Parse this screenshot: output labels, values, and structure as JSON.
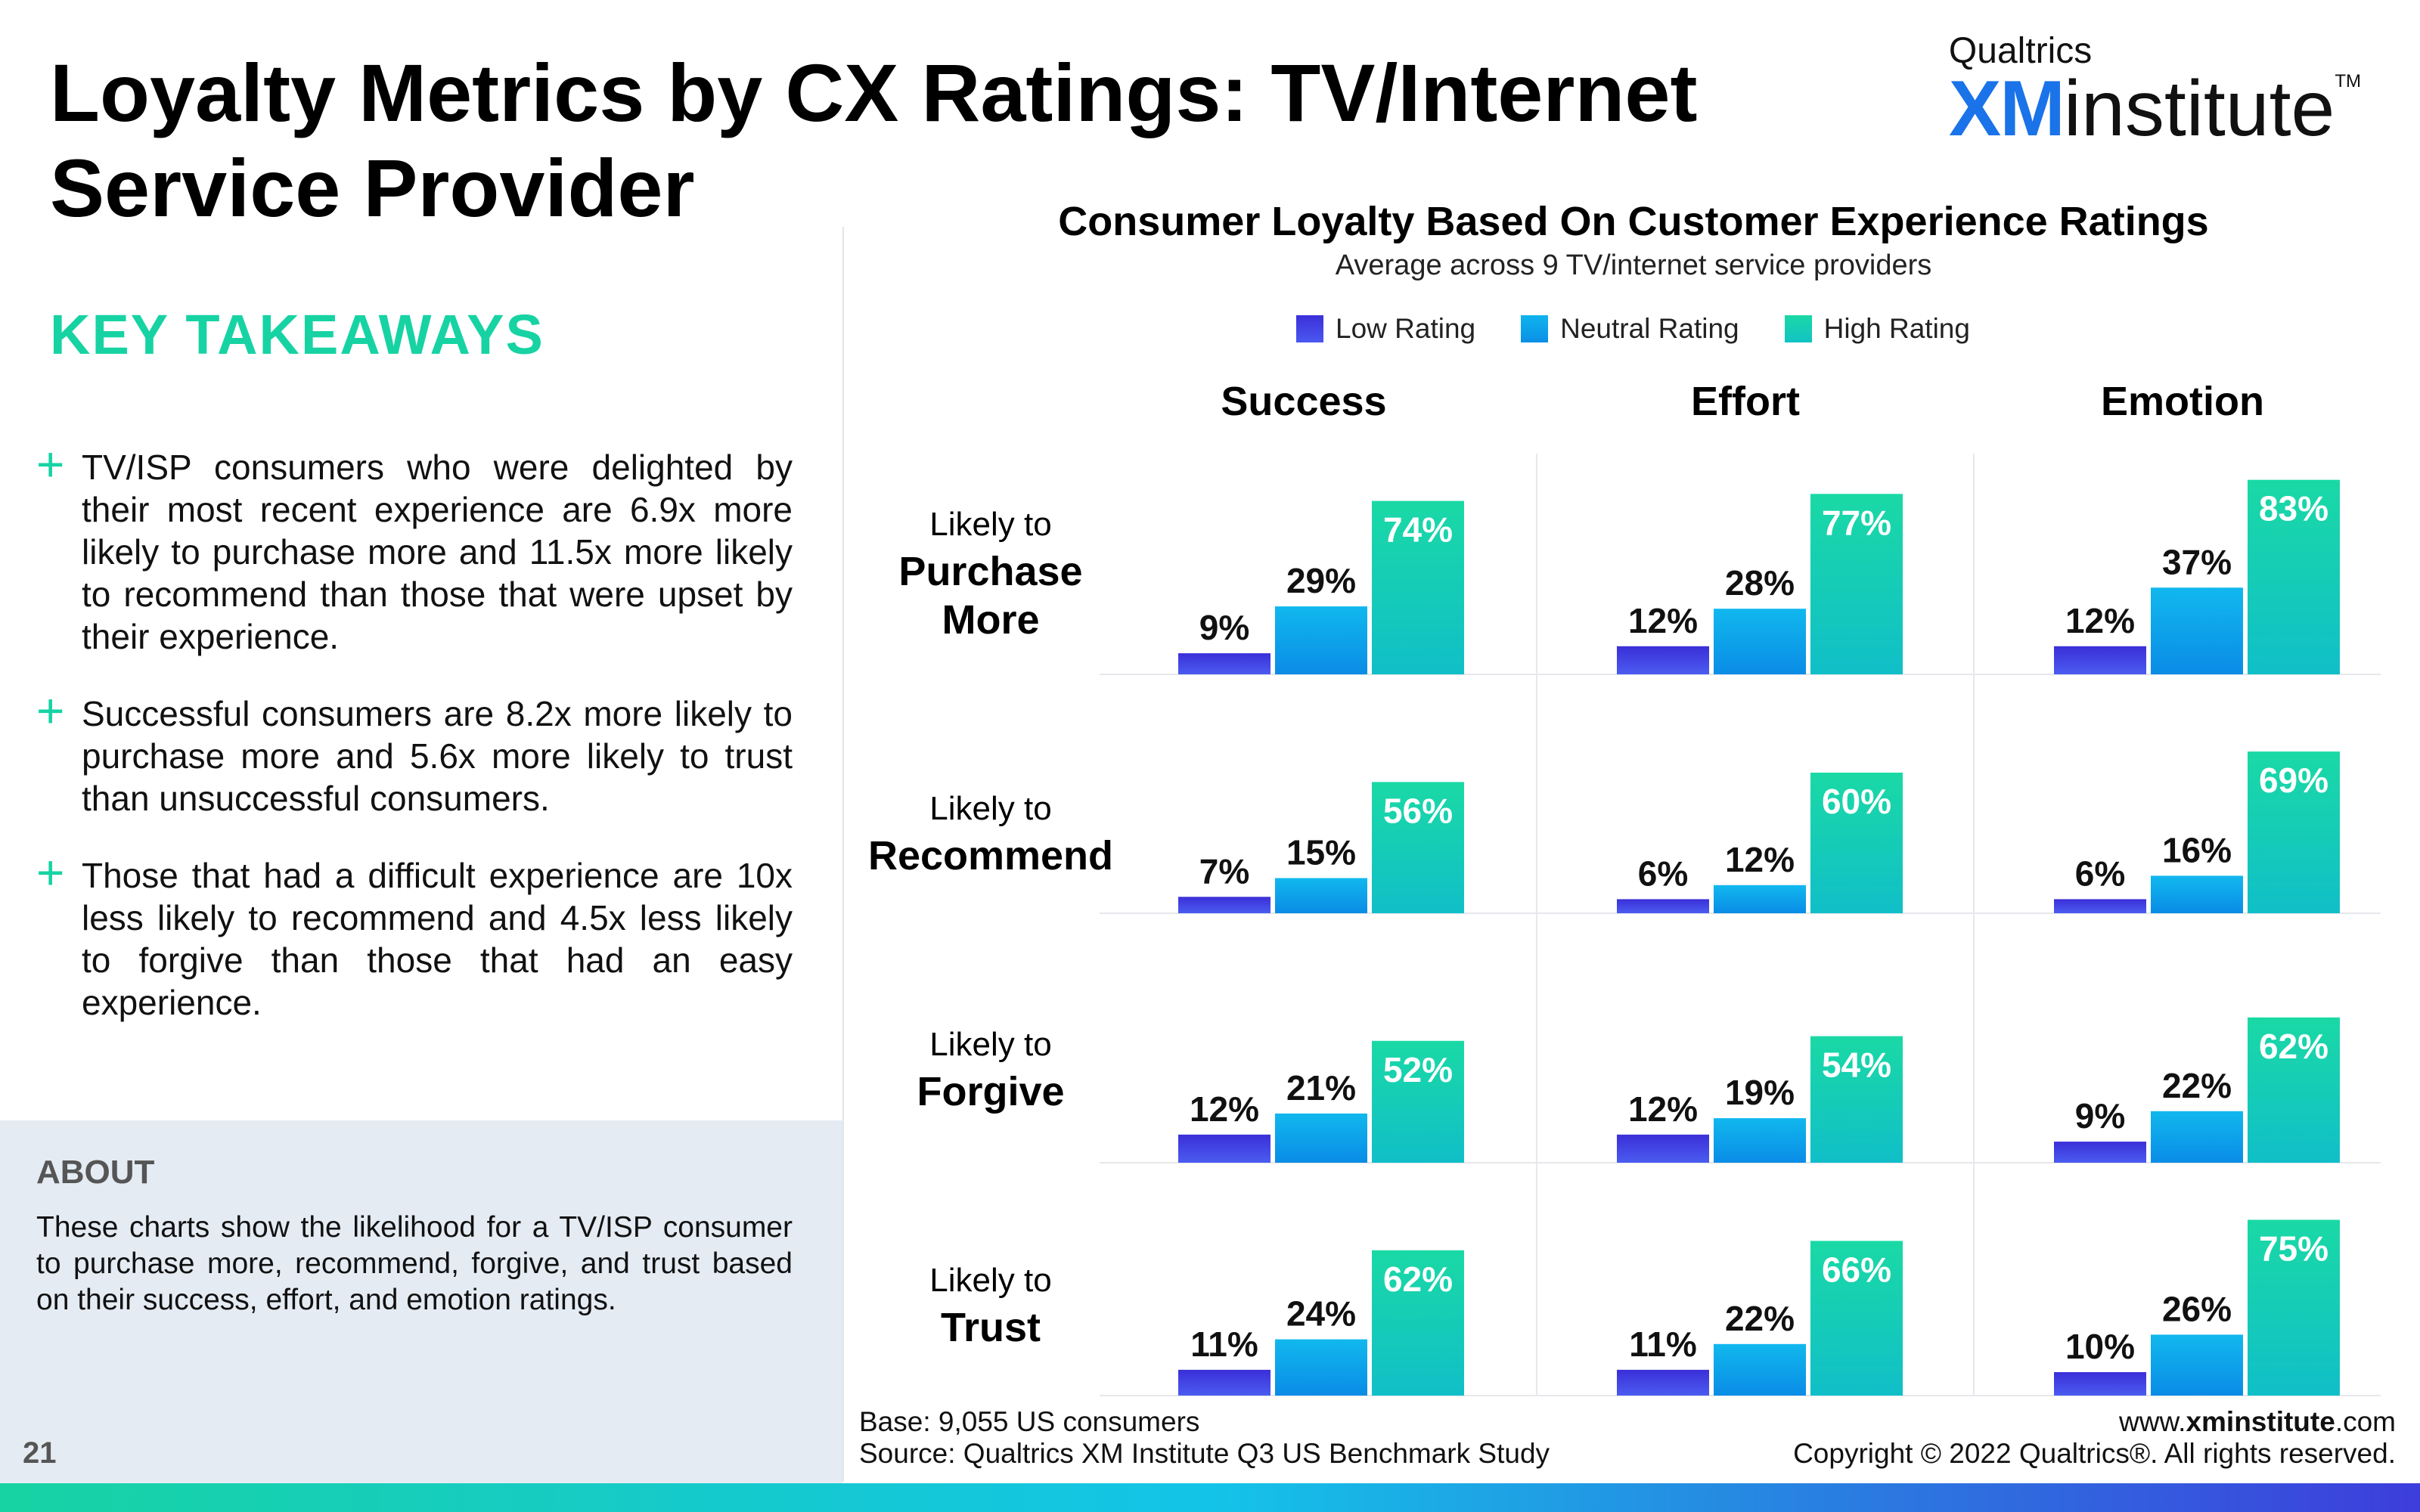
{
  "header": {
    "title": "Loyalty Metrics by CX Ratings: TV/Internet Service Provider",
    "logo_brand": "Qualtrics",
    "logo_xm": "XM",
    "logo_institute": "institute",
    "logo_tm": "TM"
  },
  "takeaways": {
    "heading": "KEY TAKEAWAYS",
    "items": [
      "TV/ISP consumers who were delighted by their most recent experience are 6.9x more likely to purchase more and 11.5x more likely to recommend than those that were upset by their experience.",
      "Successful consumers are 8.2x more likely to purchase more and 5.6x more likely to trust than unsuccessful consumers.",
      "Those that had a difficult experience are 10x less likely to recommend and 4.5x less likely to forgive than those that had an easy experience."
    ]
  },
  "about": {
    "heading": "ABOUT",
    "text": "These charts show the likelihood for a TV/ISP consumer to purchase more, recommend, forgive, and trust based on their success, effort, and emotion ratings."
  },
  "page_number": "21",
  "footer": {
    "base": "Base: 9,055 US consumers",
    "source": "Source: Qualtrics XM Institute Q3 US Benchmark Study",
    "url_prefix": "www.",
    "url_bold": "xminstitute",
    "url_suffix": ".com",
    "copyright": "Copyright © 2022 Qualtrics®. All rights reserved."
  },
  "colors": {
    "low": "#3b30d9",
    "neutral": "#0ea5ec",
    "high": "#19cfa8",
    "accent": "#17d3a3"
  },
  "chart_data": {
    "type": "bar",
    "title": "Consumer Loyalty Based On Customer Experience Ratings",
    "subtitle": "Average across 9 TV/internet service providers",
    "legend": [
      "Low Rating",
      "Neutral Rating",
      "High Rating"
    ],
    "legend_position": "top",
    "columns": [
      "Success",
      "Effort",
      "Emotion"
    ],
    "rows": [
      {
        "pre": "Likely to",
        "main": "Purchase More"
      },
      {
        "pre": "Likely to",
        "main": "Recommend"
      },
      {
        "pre": "Likely to",
        "main": "Forgive"
      },
      {
        "pre": "Likely to",
        "main": "Trust"
      }
    ],
    "unit": "%",
    "values": [
      [
        [
          9,
          29,
          74
        ],
        [
          12,
          28,
          77
        ],
        [
          12,
          37,
          83
        ]
      ],
      [
        [
          7,
          15,
          56
        ],
        [
          6,
          12,
          60
        ],
        [
          6,
          16,
          69
        ]
      ],
      [
        [
          12,
          21,
          52
        ],
        [
          12,
          19,
          54
        ],
        [
          9,
          22,
          62
        ]
      ],
      [
        [
          11,
          24,
          62
        ],
        [
          11,
          22,
          66
        ],
        [
          10,
          26,
          75
        ]
      ]
    ]
  }
}
